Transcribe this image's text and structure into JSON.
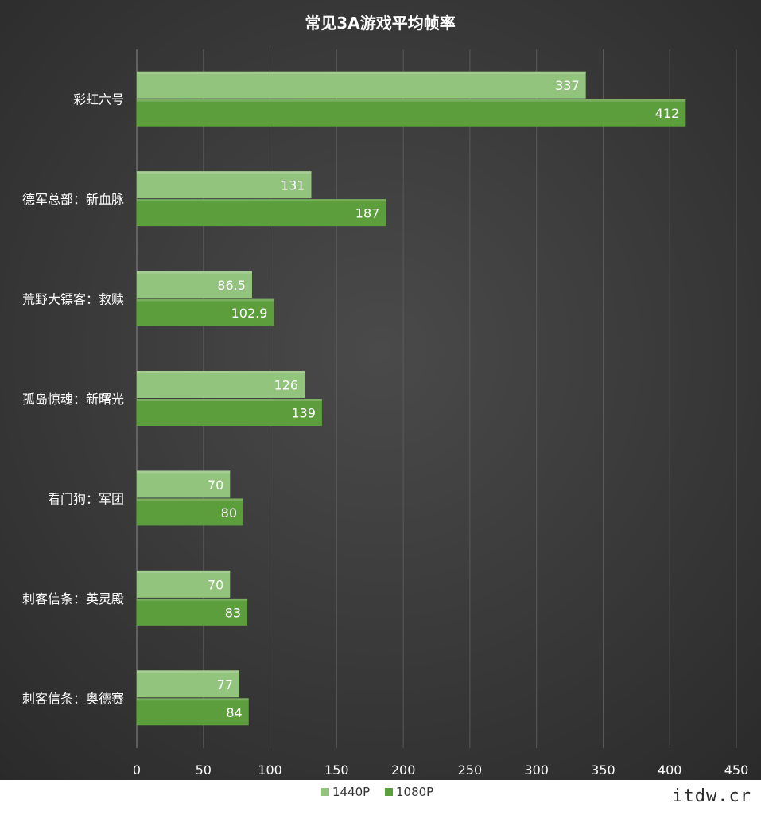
{
  "watermark": "itdw.cr",
  "chart_data": {
    "type": "bar",
    "orientation": "horizontal",
    "title": "常见3A游戏平均帧率",
    "categories": [
      "彩虹六号",
      "德军总部：新血脉",
      "荒野大镖客：救赎",
      "孤岛惊魂：新曙光",
      "看门狗：军团",
      "刺客信条：英灵殿",
      "刺客信条：奥德赛"
    ],
    "series": [
      {
        "name": "1440P",
        "values": [
          337,
          131,
          86.5,
          126,
          70,
          70,
          77
        ],
        "labels": [
          "337",
          "131",
          "86.5",
          "126",
          "70",
          "70",
          "77"
        ],
        "color": "#93c47d"
      },
      {
        "name": "1080P",
        "values": [
          412,
          187,
          102.9,
          139,
          80,
          83,
          84
        ],
        "labels": [
          "412",
          "187",
          "102.9",
          "139",
          "80",
          "83",
          "84"
        ],
        "color": "#5c9e3c"
      }
    ],
    "xlim": [
      0,
      450
    ],
    "xticks": [
      0,
      50,
      100,
      150,
      200,
      250,
      300,
      350,
      400,
      450
    ],
    "xtick_labels": [
      "0",
      "50",
      "100",
      "150",
      "200",
      "250",
      "300",
      "350",
      "400",
      "450"
    ],
    "grid": true,
    "legend_position": "bottom-center",
    "background": "#3a3a3a",
    "text_color": "#ffffff"
  }
}
